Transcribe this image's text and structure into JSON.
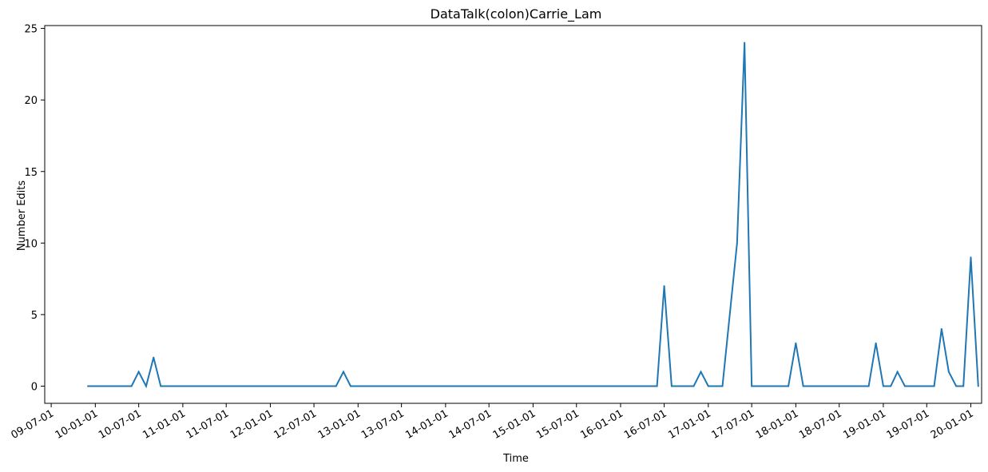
{
  "chart_data": {
    "type": "line",
    "title": "DataTalk(colon)Carrie_Lam",
    "xlabel": "Time",
    "ylabel": "Number Edits",
    "ylim": [
      -1.2,
      25.2
    ],
    "xlim": [
      "2009-06-04",
      "2020-02-15"
    ],
    "grid": false,
    "y_ticks": [
      0,
      5,
      10,
      15,
      20,
      25
    ],
    "x_ticks": [
      {
        "date": "2009-07-01",
        "label": "09-07-01"
      },
      {
        "date": "2010-01-01",
        "label": "10-01-01"
      },
      {
        "date": "2010-07-01",
        "label": "10-07-01"
      },
      {
        "date": "2011-01-01",
        "label": "11-01-01"
      },
      {
        "date": "2011-07-01",
        "label": "11-07-01"
      },
      {
        "date": "2012-01-01",
        "label": "12-01-01"
      },
      {
        "date": "2012-07-01",
        "label": "12-07-01"
      },
      {
        "date": "2013-01-01",
        "label": "13-01-01"
      },
      {
        "date": "2013-07-01",
        "label": "13-07-01"
      },
      {
        "date": "2014-01-01",
        "label": "14-01-01"
      },
      {
        "date": "2014-07-01",
        "label": "14-07-01"
      },
      {
        "date": "2015-01-01",
        "label": "15-01-01"
      },
      {
        "date": "2015-07-01",
        "label": "15-07-01"
      },
      {
        "date": "2016-01-01",
        "label": "16-01-01"
      },
      {
        "date": "2016-07-01",
        "label": "16-07-01"
      },
      {
        "date": "2017-01-01",
        "label": "17-01-01"
      },
      {
        "date": "2017-07-01",
        "label": "17-07-01"
      },
      {
        "date": "2018-01-01",
        "label": "18-01-01"
      },
      {
        "date": "2018-07-01",
        "label": "18-07-01"
      },
      {
        "date": "2019-01-01",
        "label": "19-01-01"
      },
      {
        "date": "2019-07-01",
        "label": "19-07-01"
      },
      {
        "date": "2020-01-01",
        "label": "20-01-01"
      }
    ],
    "series": [
      {
        "color": "#1f77b4",
        "points": [
          {
            "x": "2009-12-01",
            "y": 0
          },
          {
            "x": "2010-06-01",
            "y": 0
          },
          {
            "x": "2010-07-01",
            "y": 1
          },
          {
            "x": "2010-08-01",
            "y": 0
          },
          {
            "x": "2010-09-01",
            "y": 2
          },
          {
            "x": "2010-10-01",
            "y": 0
          },
          {
            "x": "2012-10-01",
            "y": 0
          },
          {
            "x": "2012-11-01",
            "y": 1
          },
          {
            "x": "2012-12-01",
            "y": 0
          },
          {
            "x": "2016-06-01",
            "y": 0
          },
          {
            "x": "2016-07-01",
            "y": 7
          },
          {
            "x": "2016-08-01",
            "y": 0
          },
          {
            "x": "2016-11-01",
            "y": 0
          },
          {
            "x": "2016-12-01",
            "y": 1
          },
          {
            "x": "2017-01-01",
            "y": 0
          },
          {
            "x": "2017-03-01",
            "y": 0
          },
          {
            "x": "2017-05-01",
            "y": 10
          },
          {
            "x": "2017-06-01",
            "y": 24
          },
          {
            "x": "2017-07-01",
            "y": 0
          },
          {
            "x": "2017-12-01",
            "y": 0
          },
          {
            "x": "2018-01-01",
            "y": 3
          },
          {
            "x": "2018-02-01",
            "y": 0
          },
          {
            "x": "2018-11-01",
            "y": 0
          },
          {
            "x": "2018-12-01",
            "y": 3
          },
          {
            "x": "2019-01-01",
            "y": 0
          },
          {
            "x": "2019-02-01",
            "y": 0
          },
          {
            "x": "2019-03-01",
            "y": 1
          },
          {
            "x": "2019-04-01",
            "y": 0
          },
          {
            "x": "2019-08-01",
            "y": 0
          },
          {
            "x": "2019-09-01",
            "y": 4
          },
          {
            "x": "2019-10-01",
            "y": 1
          },
          {
            "x": "2019-11-01",
            "y": 0
          },
          {
            "x": "2019-12-01",
            "y": 0
          },
          {
            "x": "2020-01-01",
            "y": 9
          },
          {
            "x": "2020-02-01",
            "y": 0
          }
        ]
      }
    ]
  }
}
